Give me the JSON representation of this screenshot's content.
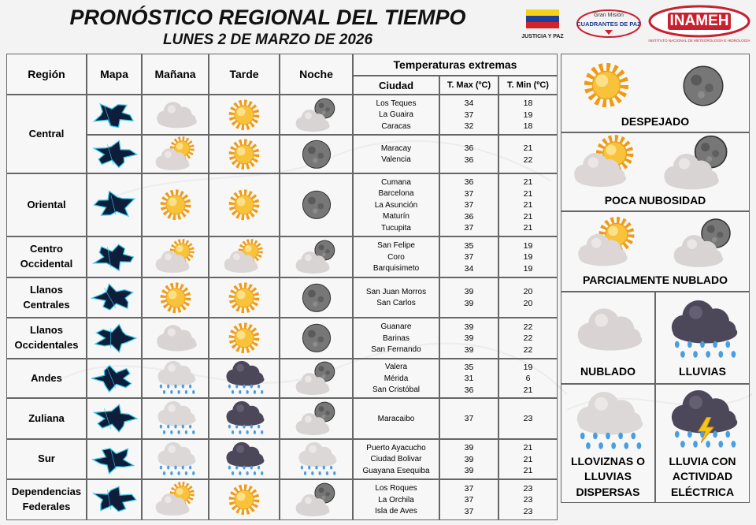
{
  "header": {
    "title": "PRONÓSTICO REGIONAL DEL TIEMPO",
    "date": "LUNES 2 DE MARZO DE 2026",
    "logos": {
      "justicia": "JUSTICIA Y PAZ",
      "mision": "Gran Misión",
      "cuadrantes": "CUADRANTES DE PAZ",
      "inameh": "INAMEH",
      "inameh_full": "INSTITUTO NACIONAL DE METEOROLOGÍA E HIDROLOGÍA"
    }
  },
  "table": {
    "columns": [
      "Región",
      "Mapa",
      "Mañana",
      "Tarde",
      "Noche"
    ],
    "temperatures_title": "Temperaturas extremas",
    "temp_columns": [
      "Ciudad",
      "T. Max (ºC)",
      "T. Min (ºC)"
    ],
    "regions": [
      {
        "name": "Central",
        "rows": [
          {
            "cities": [
              {
                "name": "Los Teques",
                "max": 34,
                "min": 18
              },
              {
                "name": "La Guaira",
                "max": 37,
                "min": 19
              },
              {
                "name": "Caracas",
                "max": 32,
                "min": 18
              }
            ]
          },
          {
            "cities": [
              {
                "name": "Maracay",
                "max": 36,
                "min": 21
              },
              {
                "name": "Valencia",
                "max": 36,
                "min": 22
              }
            ]
          }
        ]
      },
      {
        "name": "Oriental",
        "rows": [
          {
            "cities": [
              {
                "name": "Cumana",
                "max": 36,
                "min": 21
              },
              {
                "name": "Barcelona",
                "max": 37,
                "min": 21
              },
              {
                "name": "La Asunción",
                "max": 37,
                "min": 21
              },
              {
                "name": "Maturín",
                "max": 36,
                "min": 21
              },
              {
                "name": "Tucupita",
                "max": 37,
                "min": 21
              }
            ]
          }
        ]
      },
      {
        "name": "Centro Occidental",
        "rows": [
          {
            "cities": [
              {
                "name": "San Felipe",
                "max": 35,
                "min": 19
              },
              {
                "name": "Coro",
                "max": 37,
                "min": 19
              },
              {
                "name": "Barquisimeto",
                "max": 34,
                "min": 19
              }
            ]
          }
        ]
      },
      {
        "name": "Llanos Centrales",
        "rows": [
          {
            "cities": [
              {
                "name": "San Juan Morros",
                "max": 39,
                "min": 20
              },
              {
                "name": "San Carlos",
                "max": 39,
                "min": 20
              }
            ]
          }
        ]
      },
      {
        "name": "Llanos Occidentales",
        "rows": [
          {
            "cities": [
              {
                "name": "Guanare",
                "max": 39,
                "min": 22
              },
              {
                "name": "Barinas",
                "max": 39,
                "min": 22
              },
              {
                "name": "San Fernando",
                "max": 39,
                "min": 22
              }
            ]
          }
        ]
      },
      {
        "name": "Andes",
        "rows": [
          {
            "cities": [
              {
                "name": "Valera",
                "max": 35,
                "min": 19
              },
              {
                "name": "Mérida",
                "max": 31,
                "min": 6
              },
              {
                "name": "San Cristóbal",
                "max": 36,
                "min": 21
              }
            ]
          }
        ]
      },
      {
        "name": "Zuliana",
        "rows": [
          {
            "cities": [
              {
                "name": "Maracaibo",
                "max": 37,
                "min": 23
              }
            ]
          }
        ]
      },
      {
        "name": "Sur",
        "rows": [
          {
            "cities": [
              {
                "name": "Puerto Ayacucho",
                "max": 39,
                "min": 21
              },
              {
                "name": "Ciudad Bolivar",
                "max": 39,
                "min": 21
              },
              {
                "name": "Guayana Esequiba",
                "max": 39,
                "min": 21
              }
            ]
          }
        ]
      },
      {
        "name": "Dependencias Federales",
        "rows": [
          {
            "cities": [
              {
                "name": "Los Roques",
                "max": 37,
                "min": 23
              },
              {
                "name": "La Orchila",
                "max": 37,
                "min": 23
              },
              {
                "name": "Isla de Aves",
                "max": 37,
                "min": 23
              }
            ]
          }
        ]
      }
    ]
  },
  "legend": [
    "DESPEJADO",
    "POCA NUBOSIDAD",
    "PARCIALMENTE NUBLADO",
    "NUBLADO",
    "LLUVIAS",
    "LLOVIZNAS O LLUVIAS DISPERSAS",
    "LLUVIA CON ACTIVIDAD ELÉCTRICA"
  ]
}
